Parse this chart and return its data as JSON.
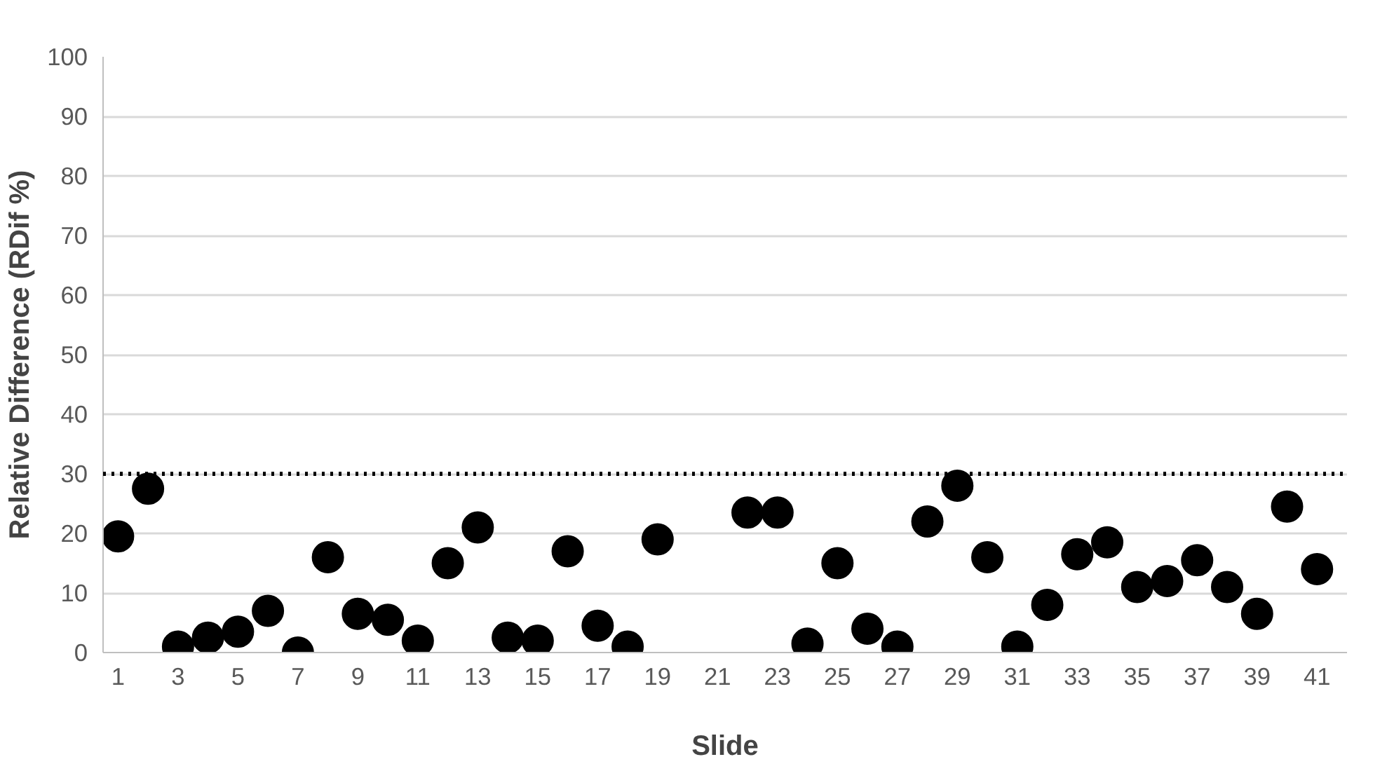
{
  "chart_data": {
    "type": "scatter",
    "xlabel": "Slide",
    "ylabel": "Relative Difference (RDif %)",
    "x": [
      1,
      2,
      3,
      4,
      5,
      6,
      7,
      8,
      9,
      10,
      11,
      12,
      13,
      14,
      15,
      16,
      17,
      18,
      19,
      20,
      21,
      22,
      23,
      24,
      25,
      26,
      27,
      28,
      29,
      30,
      31,
      32,
      33,
      34,
      35,
      36,
      37,
      38,
      39,
      40,
      41
    ],
    "series": [
      {
        "color": "#000000",
        "values": [
          19.5,
          27.5,
          1,
          2.5,
          3.5,
          7,
          0,
          16,
          6.5,
          5.5,
          2,
          15,
          21,
          2.5,
          2,
          17,
          4.5,
          1,
          19,
          null,
          null,
          23.5,
          23.5,
          1.5,
          15,
          4,
          1,
          22,
          28,
          16,
          1,
          8,
          16.5,
          18.5,
          11,
          12,
          15.5,
          11,
          6.5,
          24.5,
          14
        ]
      }
    ],
    "xlim": [
      0.5,
      42
    ],
    "xticks": [
      1,
      3,
      5,
      7,
      9,
      11,
      13,
      15,
      17,
      19,
      21,
      23,
      25,
      27,
      29,
      31,
      33,
      35,
      37,
      39,
      41
    ],
    "ylim": [
      0,
      100
    ],
    "yticks": [
      0,
      10,
      20,
      30,
      40,
      50,
      60,
      70,
      80,
      90,
      100
    ],
    "grid": "y",
    "marker": "circle",
    "ref_lines": [
      {
        "axis": "y",
        "value": 30,
        "color": "#000000",
        "line_style": "dotted"
      }
    ]
  }
}
